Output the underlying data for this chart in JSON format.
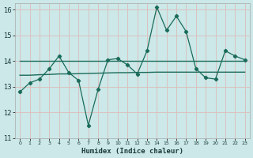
{
  "xlabel": "Humidex (Indice chaleur)",
  "bg_color": "#cce8e8",
  "grid_color": "#ddbbbb",
  "line_color": "#1a6b5a",
  "xlim": [
    -0.5,
    23.5
  ],
  "ylim": [
    11,
    16.25
  ],
  "yticks": [
    11,
    12,
    13,
    14,
    15,
    16
  ],
  "xticks": [
    0,
    1,
    2,
    3,
    4,
    5,
    6,
    7,
    8,
    9,
    10,
    11,
    12,
    13,
    14,
    15,
    16,
    17,
    18,
    19,
    20,
    21,
    22,
    23
  ],
  "series1_x": [
    0,
    1,
    2,
    3,
    4,
    5,
    6,
    7,
    8,
    9,
    10,
    11,
    12,
    13,
    14,
    15,
    16,
    17,
    18,
    19,
    20,
    21,
    22,
    23
  ],
  "series1_y": [
    12.8,
    13.15,
    13.3,
    13.7,
    14.2,
    13.55,
    13.25,
    11.5,
    12.9,
    14.05,
    14.1,
    13.85,
    13.5,
    14.4,
    16.1,
    15.2,
    15.75,
    15.15,
    13.7,
    13.35,
    13.3,
    14.4,
    14.2,
    14.05
  ],
  "series2_x": [
    0,
    1,
    2,
    3,
    4,
    5,
    6,
    7,
    8,
    9,
    10,
    11,
    12,
    13,
    14,
    15,
    16,
    17,
    18,
    19,
    20,
    21,
    22,
    23
  ],
  "series2_y": [
    14.0,
    14.0,
    14.0,
    14.0,
    14.0,
    14.0,
    14.0,
    14.0,
    14.0,
    14.0,
    14.0,
    14.0,
    14.0,
    14.0,
    14.0,
    14.0,
    14.0,
    14.0,
    14.0,
    14.0,
    14.0,
    14.0,
    14.0,
    14.0
  ],
  "series3_x": [
    0,
    1,
    2,
    3,
    4,
    5,
    6,
    7,
    8,
    9,
    10,
    11,
    12,
    13,
    14,
    15,
    16,
    17,
    18,
    19,
    20,
    21,
    22,
    23
  ],
  "series3_y": [
    13.45,
    13.45,
    13.47,
    13.48,
    13.5,
    13.5,
    13.51,
    13.52,
    13.53,
    13.54,
    13.55,
    13.55,
    13.56,
    13.56,
    13.57,
    13.57,
    13.57,
    13.57,
    13.57,
    13.57,
    13.57,
    13.57,
    13.57,
    13.57
  ]
}
